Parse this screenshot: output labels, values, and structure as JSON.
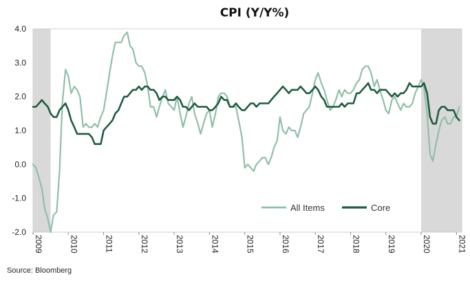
{
  "chart_data": {
    "type": "line",
    "title": "CPI (Y/Y%)",
    "xlabel": "",
    "ylabel": "",
    "xlim": [
      2009.0,
      2021.15
    ],
    "ylim": [
      -2.0,
      4.0
    ],
    "yticks": [
      "4.0",
      "3.0",
      "2.0",
      "1.0",
      "0.0",
      "-1.0",
      "-2.0"
    ],
    "xticks": [
      "2009",
      "2010",
      "2011",
      "2012",
      "2013",
      "2014",
      "2015",
      "2016",
      "2017",
      "2018",
      "2019",
      "2020",
      "2021"
    ],
    "grid": false,
    "legend_position": "bottom-right",
    "recession_shading": [
      [
        2009.0,
        2009.5
      ],
      [
        2020.0,
        2021.15
      ]
    ],
    "colors": {
      "all_items": "#8fbfa8",
      "core": "#1f5c40",
      "shading": "#d9d9d9"
    },
    "series": [
      {
        "name": "All Items",
        "key": "all_items",
        "x": [
          2009.0,
          2009.08,
          2009.17,
          2009.25,
          2009.33,
          2009.42,
          2009.5,
          2009.58,
          2009.67,
          2009.75,
          2009.83,
          2009.92,
          2010.0,
          2010.08,
          2010.17,
          2010.25,
          2010.33,
          2010.42,
          2010.5,
          2010.58,
          2010.67,
          2010.75,
          2010.83,
          2010.92,
          2011.0,
          2011.08,
          2011.17,
          2011.25,
          2011.33,
          2011.42,
          2011.5,
          2011.58,
          2011.67,
          2011.75,
          2011.83,
          2011.92,
          2012.0,
          2012.08,
          2012.17,
          2012.25,
          2012.33,
          2012.42,
          2012.5,
          2012.58,
          2012.67,
          2012.75,
          2012.83,
          2012.92,
          2013.0,
          2013.08,
          2013.17,
          2013.25,
          2013.33,
          2013.42,
          2013.5,
          2013.58,
          2013.67,
          2013.75,
          2013.83,
          2013.92,
          2014.0,
          2014.08,
          2014.17,
          2014.25,
          2014.33,
          2014.42,
          2014.5,
          2014.58,
          2014.67,
          2014.75,
          2014.83,
          2014.92,
          2015.0,
          2015.08,
          2015.17,
          2015.25,
          2015.33,
          2015.42,
          2015.5,
          2015.58,
          2015.67,
          2015.75,
          2015.83,
          2015.92,
          2016.0,
          2016.08,
          2016.17,
          2016.25,
          2016.33,
          2016.42,
          2016.5,
          2016.58,
          2016.67,
          2016.75,
          2016.83,
          2016.92,
          2017.0,
          2017.08,
          2017.17,
          2017.25,
          2017.33,
          2017.42,
          2017.5,
          2017.58,
          2017.67,
          2017.75,
          2017.83,
          2017.92,
          2018.0,
          2018.08,
          2018.17,
          2018.25,
          2018.33,
          2018.42,
          2018.5,
          2018.58,
          2018.67,
          2018.75,
          2018.83,
          2018.92,
          2019.0,
          2019.08,
          2019.17,
          2019.25,
          2019.33,
          2019.42,
          2019.5,
          2019.58,
          2019.67,
          2019.75,
          2019.83,
          2019.92,
          2020.0,
          2020.08,
          2020.17,
          2020.25,
          2020.33,
          2020.42,
          2020.5,
          2020.58,
          2020.67,
          2020.75,
          2020.83,
          2020.92,
          2021.0,
          2021.08
        ],
        "values": [
          0.0,
          -0.1,
          -0.4,
          -0.7,
          -1.3,
          -1.6,
          -2.0,
          -1.5,
          -1.4,
          -0.2,
          1.8,
          2.8,
          2.6,
          2.1,
          2.3,
          2.2,
          2.0,
          1.1,
          1.2,
          1.1,
          1.1,
          1.2,
          1.1,
          1.4,
          1.6,
          2.1,
          2.7,
          3.2,
          3.6,
          3.6,
          3.6,
          3.8,
          3.9,
          3.5,
          3.4,
          3.0,
          2.9,
          2.9,
          2.7,
          2.3,
          1.7,
          1.7,
          1.4,
          1.7,
          2.0,
          2.2,
          1.8,
          1.7,
          1.6,
          2.0,
          1.5,
          1.1,
          1.4,
          1.8,
          2.0,
          1.5,
          1.2,
          0.9,
          1.2,
          1.5,
          1.6,
          1.1,
          1.5,
          2.0,
          2.1,
          2.1,
          2.0,
          1.7,
          1.7,
          1.7,
          1.3,
          0.8,
          -0.1,
          0.0,
          -0.1,
          -0.2,
          0.0,
          0.1,
          0.2,
          0.2,
          0.0,
          0.2,
          0.5,
          0.7,
          1.4,
          1.0,
          0.9,
          1.1,
          1.0,
          1.0,
          0.8,
          1.1,
          1.5,
          1.6,
          1.7,
          2.1,
          2.5,
          2.7,
          2.4,
          2.2,
          1.9,
          1.6,
          1.7,
          1.9,
          2.2,
          2.0,
          2.2,
          2.1,
          2.1,
          2.2,
          2.4,
          2.5,
          2.8,
          2.9,
          2.9,
          2.7,
          2.3,
          2.5,
          2.2,
          1.9,
          1.6,
          1.5,
          1.9,
          2.0,
          1.8,
          1.6,
          1.8,
          1.7,
          1.7,
          1.8,
          2.1,
          2.3,
          2.5,
          2.3,
          1.5,
          0.3,
          0.1,
          0.6,
          1.0,
          1.3,
          1.4,
          1.2,
          1.2,
          1.4,
          1.4,
          1.7
        ]
      },
      {
        "name": "Core",
        "key": "core",
        "x": [
          2009.0,
          2009.08,
          2009.17,
          2009.25,
          2009.33,
          2009.42,
          2009.5,
          2009.58,
          2009.67,
          2009.75,
          2009.83,
          2009.92,
          2010.0,
          2010.08,
          2010.17,
          2010.25,
          2010.33,
          2010.42,
          2010.5,
          2010.58,
          2010.67,
          2010.75,
          2010.83,
          2010.92,
          2011.0,
          2011.08,
          2011.17,
          2011.25,
          2011.33,
          2011.42,
          2011.5,
          2011.58,
          2011.67,
          2011.75,
          2011.83,
          2011.92,
          2012.0,
          2012.08,
          2012.17,
          2012.25,
          2012.33,
          2012.42,
          2012.5,
          2012.58,
          2012.67,
          2012.75,
          2012.83,
          2012.92,
          2013.0,
          2013.08,
          2013.17,
          2013.25,
          2013.33,
          2013.42,
          2013.5,
          2013.58,
          2013.67,
          2013.75,
          2013.83,
          2013.92,
          2014.0,
          2014.08,
          2014.17,
          2014.25,
          2014.33,
          2014.42,
          2014.5,
          2014.58,
          2014.67,
          2014.75,
          2014.83,
          2014.92,
          2015.0,
          2015.08,
          2015.17,
          2015.25,
          2015.33,
          2015.42,
          2015.5,
          2015.58,
          2015.67,
          2015.75,
          2015.83,
          2015.92,
          2016.0,
          2016.08,
          2016.17,
          2016.25,
          2016.33,
          2016.42,
          2016.5,
          2016.58,
          2016.67,
          2016.75,
          2016.83,
          2016.92,
          2017.0,
          2017.08,
          2017.17,
          2017.25,
          2017.33,
          2017.42,
          2017.5,
          2017.58,
          2017.67,
          2017.75,
          2017.83,
          2017.92,
          2018.0,
          2018.08,
          2018.17,
          2018.25,
          2018.33,
          2018.42,
          2018.5,
          2018.58,
          2018.67,
          2018.75,
          2018.83,
          2018.92,
          2019.0,
          2019.08,
          2019.17,
          2019.25,
          2019.33,
          2019.42,
          2019.5,
          2019.58,
          2019.67,
          2019.75,
          2019.83,
          2019.92,
          2020.0,
          2020.08,
          2020.17,
          2020.25,
          2020.33,
          2020.42,
          2020.5,
          2020.58,
          2020.67,
          2020.75,
          2020.83,
          2020.92,
          2021.0,
          2021.08
        ],
        "values": [
          1.7,
          1.7,
          1.8,
          1.9,
          1.8,
          1.7,
          1.5,
          1.4,
          1.4,
          1.6,
          1.7,
          1.8,
          1.6,
          1.3,
          1.1,
          0.9,
          0.9,
          0.9,
          0.9,
          0.9,
          0.8,
          0.6,
          0.6,
          0.6,
          1.0,
          1.1,
          1.2,
          1.3,
          1.5,
          1.6,
          1.8,
          2.0,
          2.0,
          2.1,
          2.2,
          2.2,
          2.3,
          2.2,
          2.3,
          2.3,
          2.2,
          2.2,
          2.1,
          1.9,
          2.0,
          2.0,
          1.9,
          1.9,
          1.9,
          2.0,
          1.9,
          1.7,
          1.7,
          1.6,
          1.7,
          1.8,
          1.7,
          1.7,
          1.7,
          1.7,
          1.6,
          1.6,
          1.7,
          1.8,
          2.0,
          1.9,
          1.9,
          1.7,
          1.7,
          1.8,
          1.7,
          1.6,
          1.6,
          1.7,
          1.8,
          1.8,
          1.7,
          1.8,
          1.8,
          1.8,
          1.8,
          1.9,
          2.0,
          2.1,
          2.2,
          2.3,
          2.2,
          2.1,
          2.2,
          2.2,
          2.2,
          2.3,
          2.2,
          2.1,
          2.1,
          2.2,
          2.3,
          2.2,
          2.0,
          1.9,
          1.7,
          1.7,
          1.7,
          1.7,
          1.7,
          1.8,
          1.7,
          1.8,
          1.8,
          1.8,
          2.1,
          2.1,
          2.2,
          2.3,
          2.4,
          2.2,
          2.2,
          2.1,
          2.2,
          2.2,
          2.2,
          2.1,
          2.0,
          2.1,
          2.0,
          2.1,
          2.1,
          2.2,
          2.4,
          2.3,
          2.3,
          2.3,
          2.3,
          2.4,
          2.1,
          1.4,
          1.2,
          1.2,
          1.6,
          1.7,
          1.7,
          1.6,
          1.6,
          1.6,
          1.4,
          1.3
        ]
      }
    ]
  },
  "source": "Source: Bloomberg"
}
